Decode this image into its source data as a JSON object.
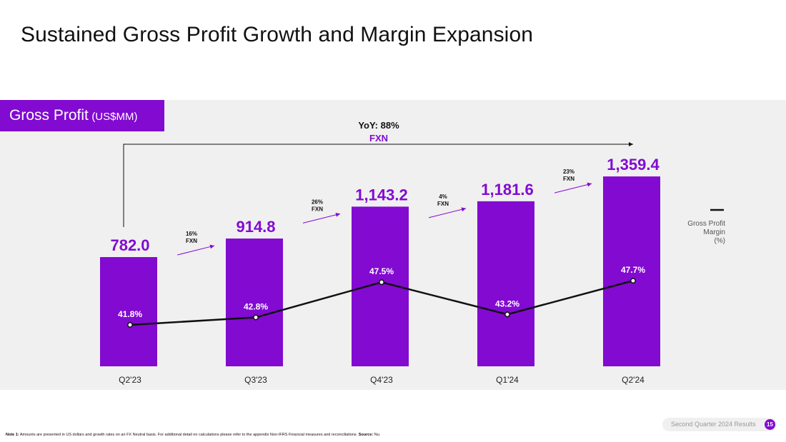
{
  "page": {
    "title": "Sustained Gross Profit Growth and Margin Expansion",
    "section_label": "Gross Profit",
    "section_unit": "(US$MM)",
    "footnote_label": "Note 1:",
    "footnote_text": "Amounts are presented in US dollars and growth rates on an FX Neutral basis. For additional detail on calculations please refer to the appendix Non-IFRS Financial measures and reconciliations.",
    "footnote_source_label": "Source:",
    "footnote_source": "Nu.",
    "results_label": "Second Quarter 2024 Results",
    "page_number": "15"
  },
  "chart_data": {
    "type": "bar",
    "categories": [
      "Q2'23",
      "Q3'23",
      "Q4'23",
      "Q1'24",
      "Q2'24"
    ],
    "series": [
      {
        "values": [
          782.0,
          914.8,
          1143.2,
          1181.6,
          1359.4
        ],
        "labels": [
          "782.0",
          "914.8",
          "1,143.2",
          "1,181.6",
          "1,359.4"
        ]
      },
      {
        "name": "Gross Profit Margin (%)",
        "type": "line",
        "values": [
          41.8,
          42.8,
          47.5,
          43.2,
          47.7
        ],
        "labels": [
          "41.8%",
          "42.8%",
          "47.5%",
          "43.2%",
          "47.7%"
        ]
      }
    ],
    "growth_annotations": [
      {
        "from": "Q2'23",
        "to": "Q3'23",
        "value": "16%",
        "basis": "FXN"
      },
      {
        "from": "Q3'23",
        "to": "Q4'23",
        "value": "26%",
        "basis": "FXN"
      },
      {
        "from": "Q4'23",
        "to": "Q1'24",
        "value": "4%",
        "basis": "FXN"
      },
      {
        "from": "Q1'24",
        "to": "Q2'24",
        "value": "23%",
        "basis": "FXN"
      }
    ],
    "yoy": {
      "label": "YoY: 88%",
      "basis": "FXN"
    },
    "legend": {
      "line_label_1": "Gross Profit",
      "line_label_2": "Margin",
      "line_label_3": "(%)",
      "position": "right"
    },
    "colors": {
      "bar": "#820ad1",
      "label": "#820ad1",
      "line": "#111111",
      "panel": "#f0f0f0"
    }
  }
}
